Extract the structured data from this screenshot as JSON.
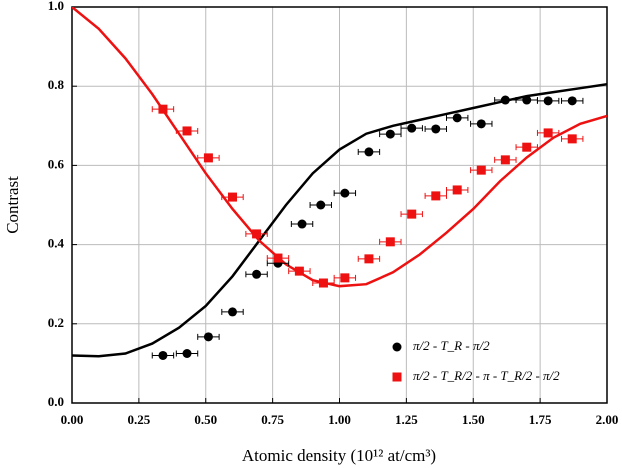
{
  "chart_data": {
    "type": "scatter",
    "xlabel": "Atomic density (10¹² at/cm³)",
    "ylabel": "Contrast",
    "xlim": [
      0,
      2.0
    ],
    "ylim": [
      0,
      1.0
    ],
    "xticks": [
      {
        "value": 0,
        "label": "0.00"
      },
      {
        "value": 0.25,
        "label": "0.25"
      },
      {
        "value": 0.5,
        "label": "0.50"
      },
      {
        "value": 0.75,
        "label": "0.75"
      },
      {
        "value": 1.0,
        "label": "1.00"
      },
      {
        "value": 1.25,
        "label": "1.25"
      },
      {
        "value": 1.5,
        "label": "1.50"
      },
      {
        "value": 1.75,
        "label": "1.75"
      },
      {
        "value": 2.0,
        "label": "2.00"
      }
    ],
    "yticks": [
      {
        "value": 0,
        "label": "0.0"
      },
      {
        "value": 0.2,
        "label": "0.2"
      },
      {
        "value": 0.4,
        "label": "0.4"
      },
      {
        "value": 0.6,
        "label": "0.6"
      },
      {
        "value": 0.8,
        "label": "0.8"
      },
      {
        "value": 1.0,
        "label": "1.0"
      }
    ],
    "grid": true,
    "legend": "lower right",
    "series": [
      {
        "name": "π/2 - T_R - π/2",
        "color": "#000000",
        "marker": "circle",
        "x_error": 0.04,
        "y_error": 0.01,
        "x": [
          0.34,
          0.43,
          0.51,
          0.6,
          0.69,
          0.77,
          0.86,
          0.93,
          1.02,
          1.11,
          1.19,
          1.27,
          1.36,
          1.44,
          1.53,
          1.62,
          1.7,
          1.78,
          1.87
        ],
        "values": [
          0.12,
          0.125,
          0.167,
          0.23,
          0.325,
          0.353,
          0.452,
          0.5,
          0.53,
          0.634,
          0.679,
          0.694,
          0.692,
          0.72,
          0.705,
          0.765,
          0.765,
          0.763,
          0.763
        ]
      },
      {
        "name": "π/2 - T_R/2 - π - T_R/2 - π/2",
        "color": "#ee1111",
        "marker": "square",
        "x_error": 0.04,
        "y_error": 0.01,
        "x": [
          0.34,
          0.43,
          0.51,
          0.6,
          0.69,
          0.77,
          0.85,
          0.94,
          1.02,
          1.11,
          1.19,
          1.27,
          1.36,
          1.44,
          1.53,
          1.62,
          1.7,
          1.78,
          1.87
        ],
        "values": [
          0.742,
          0.687,
          0.619,
          0.52,
          0.427,
          0.366,
          0.333,
          0.303,
          0.316,
          0.364,
          0.407,
          0.477,
          0.523,
          0.538,
          0.588,
          0.614,
          0.646,
          0.682,
          0.667
        ]
      }
    ],
    "curves": [
      {
        "color": "#000000",
        "x": [
          0,
          0.1,
          0.2,
          0.3,
          0.4,
          0.5,
          0.6,
          0.7,
          0.8,
          0.9,
          1.0,
          1.1,
          1.2,
          1.3,
          1.4,
          1.5,
          1.6,
          1.7,
          1.8,
          1.9,
          2.0
        ],
        "values": [
          0.12,
          0.118,
          0.125,
          0.15,
          0.19,
          0.245,
          0.32,
          0.41,
          0.5,
          0.58,
          0.64,
          0.68,
          0.7,
          0.715,
          0.73,
          0.745,
          0.76,
          0.775,
          0.785,
          0.795,
          0.805
        ]
      },
      {
        "color": "#ee1111",
        "x": [
          0,
          0.1,
          0.2,
          0.3,
          0.4,
          0.5,
          0.6,
          0.7,
          0.8,
          0.9,
          1.0,
          1.1,
          1.2,
          1.3,
          1.4,
          1.5,
          1.6,
          1.7,
          1.8,
          1.9,
          2.0
        ],
        "values": [
          1.0,
          0.945,
          0.87,
          0.78,
          0.68,
          0.58,
          0.49,
          0.41,
          0.35,
          0.31,
          0.295,
          0.3,
          0.33,
          0.375,
          0.43,
          0.49,
          0.56,
          0.62,
          0.67,
          0.705,
          0.725
        ]
      }
    ]
  }
}
